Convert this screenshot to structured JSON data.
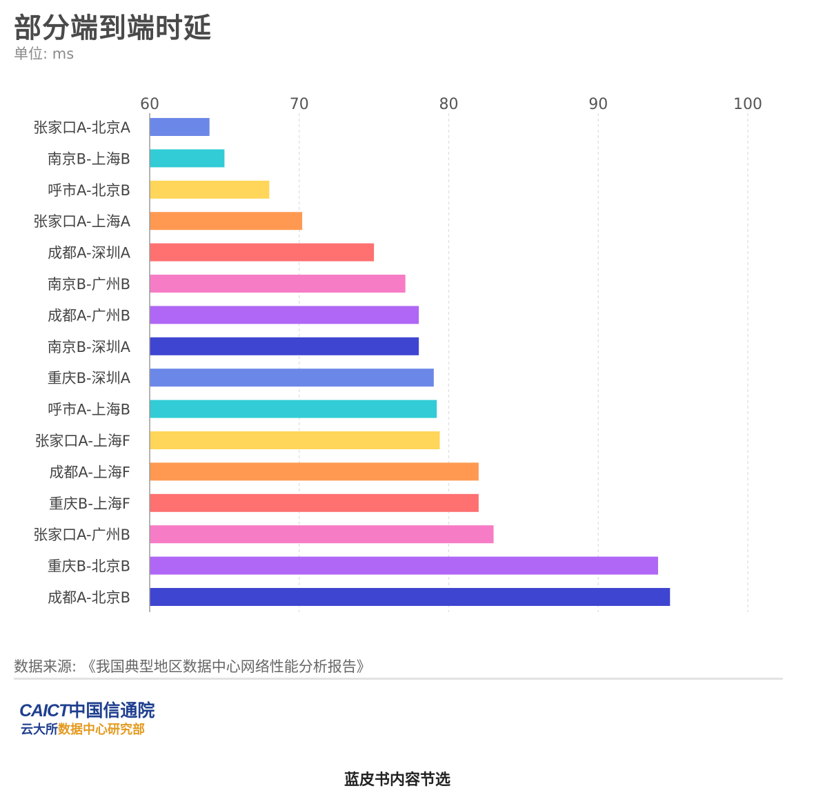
{
  "title": "部分端到端时延",
  "subtitle": "单位: ms",
  "source": "数据来源: 《我国典型地区数据中心网络性能分析报告》",
  "logo": {
    "caict": "CAICT",
    "org": "中国信通院",
    "dept_prefix": "云大所",
    "dept_suffix": "数据中心研究部"
  },
  "footer": "蓝皮书内容节选",
  "chart_data": {
    "type": "bar",
    "orientation": "horizontal",
    "title": "部分端到端时延",
    "subtitle": "单位: ms",
    "xlim": [
      60,
      100
    ],
    "ticks": [
      60,
      70,
      80,
      90,
      100
    ],
    "grid": "vertical dashed",
    "categories": [
      "张家口A-北京A",
      "南京B-上海B",
      "呼市A-北京B",
      "张家口A-上海A",
      "成都A-深圳A",
      "南京B-广州B",
      "成都A-广州B",
      "南京B-深圳A",
      "重庆B-深圳A",
      "呼市A-上海B",
      "张家口A-上海F",
      "成都A-上海F",
      "重庆B-上海F",
      "张家口A-广州B",
      "重庆B-北京B",
      "成都A-北京B"
    ],
    "values": [
      64,
      65,
      68,
      70.2,
      75,
      77.1,
      78,
      78,
      79,
      79.2,
      79.4,
      82,
      82,
      83,
      94,
      94.8
    ],
    "colors": [
      "#6b87e8",
      "#31ccd6",
      "#ffd659",
      "#ff9952",
      "#ff7070",
      "#f77cc6",
      "#b067f5",
      "#3e45d1",
      "#6b87e8",
      "#31ccd6",
      "#ffd659",
      "#ff9952",
      "#ff7070",
      "#f77cc6",
      "#b067f5",
      "#3e45d1"
    ]
  }
}
